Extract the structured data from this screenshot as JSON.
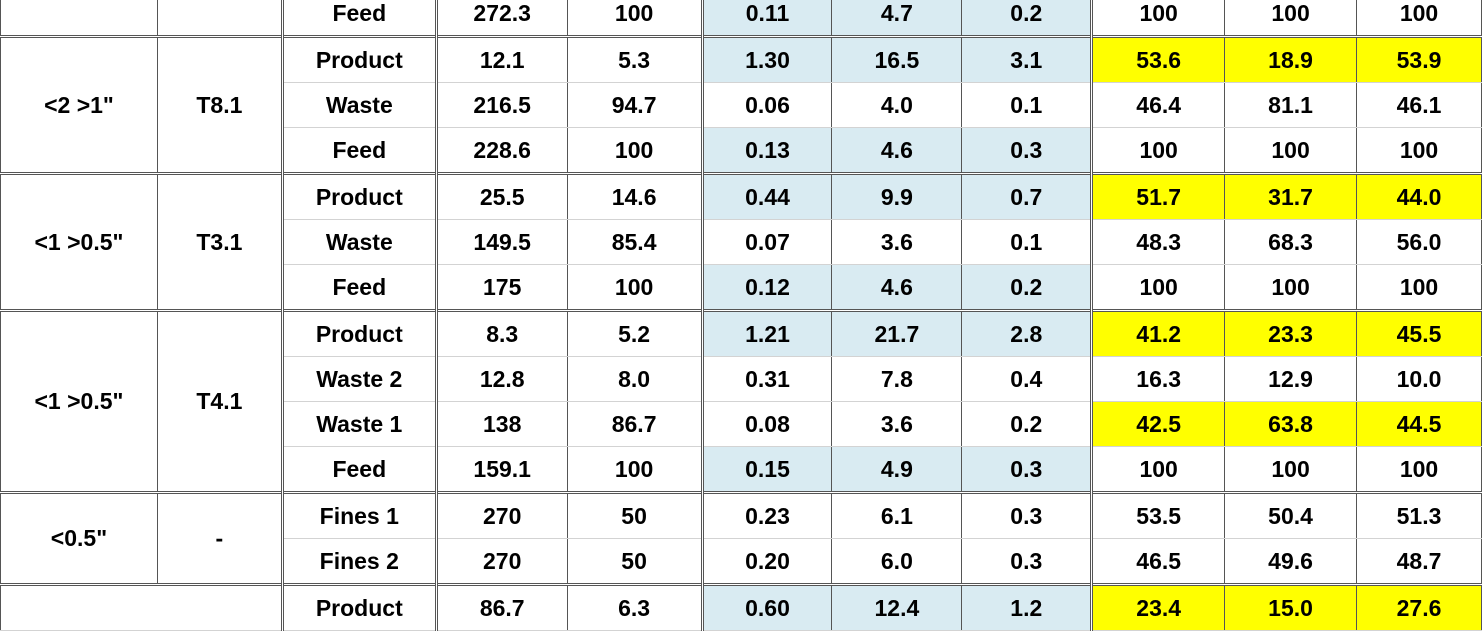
{
  "groups": [
    {
      "size": "",
      "test": "",
      "rows": [
        {
          "label": "Feed",
          "c1": "272.3",
          "c2": "100",
          "c3": "0.11",
          "c4": "4.7",
          "c5": "0.2",
          "c6": "100",
          "c7": "100",
          "c8": "100",
          "blue": true,
          "yellow": false
        }
      ]
    },
    {
      "size": "<2 >1\"",
      "test": "T8.1",
      "rows": [
        {
          "label": "Product",
          "c1": "12.1",
          "c2": "5.3",
          "c3": "1.30",
          "c4": "16.5",
          "c5": "3.1",
          "c6": "53.6",
          "c7": "18.9",
          "c8": "53.9",
          "blue": true,
          "yellow": true
        },
        {
          "label": "Waste",
          "c1": "216.5",
          "c2": "94.7",
          "c3": "0.06",
          "c4": "4.0",
          "c5": "0.1",
          "c6": "46.4",
          "c7": "81.1",
          "c8": "46.1",
          "blue": false,
          "yellow": false
        },
        {
          "label": "Feed",
          "c1": "228.6",
          "c2": "100",
          "c3": "0.13",
          "c4": "4.6",
          "c5": "0.3",
          "c6": "100",
          "c7": "100",
          "c8": "100",
          "blue": true,
          "yellow": false
        }
      ]
    },
    {
      "size": "<1 >0.5\"",
      "test": "T3.1",
      "rows": [
        {
          "label": "Product",
          "c1": "25.5",
          "c2": "14.6",
          "c3": "0.44",
          "c4": "9.9",
          "c5": "0.7",
          "c6": "51.7",
          "c7": "31.7",
          "c8": "44.0",
          "blue": true,
          "yellow": true
        },
        {
          "label": "Waste",
          "c1": "149.5",
          "c2": "85.4",
          "c3": "0.07",
          "c4": "3.6",
          "c5": "0.1",
          "c6": "48.3",
          "c7": "68.3",
          "c8": "56.0",
          "blue": false,
          "yellow": false
        },
        {
          "label": "Feed",
          "c1": "175",
          "c2": "100",
          "c3": "0.12",
          "c4": "4.6",
          "c5": "0.2",
          "c6": "100",
          "c7": "100",
          "c8": "100",
          "blue": true,
          "yellow": false
        }
      ]
    },
    {
      "size": "<1 >0.5\"",
      "test": "T4.1",
      "rows": [
        {
          "label": "Product",
          "c1": "8.3",
          "c2": "5.2",
          "c3": "1.21",
          "c4": "21.7",
          "c5": "2.8",
          "c6": "41.2",
          "c7": "23.3",
          "c8": "45.5",
          "blue": true,
          "yellow": true
        },
        {
          "label": "Waste 2",
          "c1": "12.8",
          "c2": "8.0",
          "c3": "0.31",
          "c4": "7.8",
          "c5": "0.4",
          "c6": "16.3",
          "c7": "12.9",
          "c8": "10.0",
          "blue": false,
          "yellow": false
        },
        {
          "label": "Waste 1",
          "c1": "138",
          "c2": "86.7",
          "c3": "0.08",
          "c4": "3.6",
          "c5": "0.2",
          "c6": "42.5",
          "c7": "63.8",
          "c8": "44.5",
          "blue": false,
          "yellow": true
        },
        {
          "label": "Feed",
          "c1": "159.1",
          "c2": "100",
          "c3": "0.15",
          "c4": "4.9",
          "c5": "0.3",
          "c6": "100",
          "c7": "100",
          "c8": "100",
          "blue": true,
          "yellow": false
        }
      ]
    },
    {
      "size": "<0.5\"",
      "test": "-",
      "rows": [
        {
          "label": "Fines 1",
          "c1": "270",
          "c2": "50",
          "c3": "0.23",
          "c4": "6.1",
          "c5": "0.3",
          "c6": "53.5",
          "c7": "50.4",
          "c8": "51.3",
          "blue": false,
          "yellow": false
        },
        {
          "label": "Fines 2",
          "c1": "270",
          "c2": "50",
          "c3": "0.20",
          "c4": "6.0",
          "c5": "0.3",
          "c6": "46.5",
          "c7": "49.6",
          "c8": "48.7",
          "blue": false,
          "yellow": false
        }
      ]
    },
    {
      "size": "",
      "test": "",
      "mergeSizeTest": true,
      "rows": [
        {
          "label": "Product",
          "c1": "86.7",
          "c2": "6.3",
          "c3": "0.60",
          "c4": "12.4",
          "c5": "1.2",
          "c6": "23.4",
          "c7": "15.0",
          "c8": "27.6",
          "blue": true,
          "yellow": true
        }
      ]
    }
  ],
  "colors": {
    "blue_fill": "#d9ebf2",
    "yellow_fill": "#ffff00",
    "grid_line": "#d3d3d3",
    "border": "#555555"
  }
}
